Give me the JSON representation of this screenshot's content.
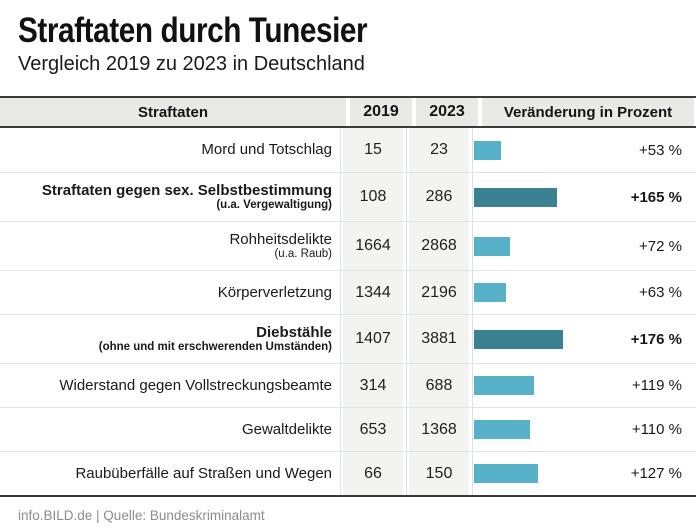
{
  "title": "Straftaten durch Tunesier",
  "subtitle": "Vergleich 2019 zu 2023 in Deutschland",
  "table": {
    "headers": {
      "crime": "Straftaten",
      "y2019": "2019",
      "y2023": "2023",
      "change": "Veränderung in Prozent"
    },
    "rows": [
      {
        "label": "Mord und Totschlag",
        "sublabel": "",
        "v2019": "15",
        "v2023": "23",
        "pct_label": "+53 %",
        "pct_value": 53,
        "highlight": false
      },
      {
        "label": "Straftaten gegen sex. Selbstbestimmung",
        "sublabel": "(u.a. Vergewaltigung)",
        "v2019": "108",
        "v2023": "286",
        "pct_label": "+165 %",
        "pct_value": 165,
        "highlight": true
      },
      {
        "label": "Rohheitsdelikte",
        "sublabel": "(u.a. Raub)",
        "v2019": "1664",
        "v2023": "2868",
        "pct_label": "+72 %",
        "pct_value": 72,
        "highlight": false
      },
      {
        "label": "Körperverletzung",
        "sublabel": "",
        "v2019": "1344",
        "v2023": "2196",
        "pct_label": "+63 %",
        "pct_value": 63,
        "highlight": false
      },
      {
        "label": "Diebstähle",
        "sublabel": "(ohne und mit erschwerenden Umständen)",
        "v2019": "1407",
        "v2023": "3881",
        "pct_label": "+176 %",
        "pct_value": 176,
        "highlight": true
      },
      {
        "label": "Widerstand gegen Vollstreckungsbeamte",
        "sublabel": "",
        "v2019": "314",
        "v2023": "688",
        "pct_label": "+119 %",
        "pct_value": 119,
        "highlight": false
      },
      {
        "label": "Gewaltdelikte",
        "sublabel": "",
        "v2019": "653",
        "v2023": "1368",
        "pct_label": "+110 %",
        "pct_value": 110,
        "highlight": false
      },
      {
        "label": "Raubüberfälle auf Straßen und Wegen",
        "sublabel": "",
        "v2019": "66",
        "v2023": "150",
        "pct_label": "+127 %",
        "pct_value": 127,
        "highlight": false
      }
    ]
  },
  "footer": {
    "text": "info.BILD.de | Quelle: Bundeskriminalamt"
  },
  "colors": {
    "bar_light": "#57b2c9",
    "bar_dark": "#3a8191",
    "header_bg": "#e9e9e7",
    "column_tint": "#f3f3f1",
    "dark_line": "#3a3a3a",
    "row_line": "#dce6e8",
    "footer_text": "#8c8c8c"
  },
  "chart_data": {
    "type": "bar",
    "title": "Straftaten durch Tunesier",
    "subtitle": "Vergleich 2019 zu 2023 in Deutschland",
    "categories": [
      "Mord und Totschlag",
      "Straftaten gegen sex. Selbstbestimmung (u.a. Vergewaltigung)",
      "Rohheitsdelikte (u.a. Raub)",
      "Körperverletzung",
      "Diebstähle (ohne und mit erschwerenden Umständen)",
      "Widerstand gegen Vollstreckungsbeamte",
      "Gewaltdelikte",
      "Raubüberfälle auf Straßen und Wegen"
    ],
    "series": [
      {
        "name": "2019",
        "values": [
          15,
          108,
          1664,
          1344,
          1407,
          314,
          653,
          66
        ]
      },
      {
        "name": "2023",
        "values": [
          23,
          286,
          2868,
          2196,
          3881,
          688,
          1368,
          150
        ]
      },
      {
        "name": "Veränderung in Prozent",
        "values": [
          53,
          165,
          72,
          63,
          176,
          119,
          110,
          127
        ]
      }
    ],
    "bars_depict": "Veränderung in Prozent",
    "highlighted_rows": [
      1,
      4
    ],
    "orientation": "horizontal",
    "xlim_percent": [
      0,
      176
    ]
  }
}
